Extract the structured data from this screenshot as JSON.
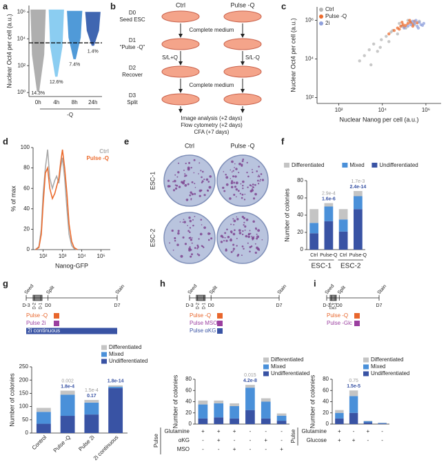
{
  "panel_labels": [
    "a",
    "b",
    "c",
    "d",
    "e",
    "f",
    "g",
    "h",
    "i"
  ],
  "diagram": {
    "columns": [
      "Ctrl",
      "Pulse -Q"
    ],
    "steps": [
      {
        "day": "D0",
        "label": "Seed ESC"
      },
      {
        "day": "D1",
        "label": "“Pulse -Q”"
      },
      {
        "day": "D2",
        "label": "Recover"
      },
      {
        "day": "D3",
        "label": "Split"
      }
    ],
    "transitions": [
      {
        "center": "Complete medium"
      },
      {
        "left": "S/L+Q",
        "right": "S/L-Q"
      },
      {
        "center": "Complete medium"
      }
    ],
    "readouts": [
      "Image analysis (+2 days)",
      "Flow cytometry (+2 days)",
      "CFA (+7 days)"
    ]
  },
  "plates": {
    "columns": [
      "Ctrl",
      "Pulse -Q"
    ],
    "rows": [
      "ESC-1",
      "ESC-2"
    ]
  },
  "chart_data": [
    {
      "type": "strip",
      "y_label": "Nuclear Oct4 per cell (a.u.)",
      "x_label": "-Q",
      "categories": [
        "0h",
        "4h",
        "8h",
        "24h"
      ],
      "low": [
        1.2,
        15,
        300,
        3000
      ],
      "high": [
        1500000,
        1500000,
        1200000,
        1000000
      ],
      "colors": [
        "#a6a6a6",
        "#7ec8ef",
        "#3d8fd4",
        "#2b55a8"
      ],
      "threshold": 5000,
      "annotations": [
        "14.3%",
        "12.6%",
        "7.4%",
        "1.4%"
      ],
      "log_y": true,
      "ylim": [
        0.5,
        3000000
      ],
      "yticks": [
        {
          "value": 1,
          "label": "10⁰"
        },
        {
          "value": 100,
          "label": "10²"
        },
        {
          "value": 10000,
          "label": "10⁴"
        },
        {
          "value": 1000000,
          "label": "10⁶"
        }
      ]
    },
    {
      "type": "scatter",
      "x_label": "Nuclear Nanog per cell (a.u.)",
      "y_label": "Nuclear Oct4 per cell (a.u.)",
      "log_x": true,
      "log_y": true,
      "xlim": [
        10,
        5000000
      ],
      "ylim": [
        50,
        5000000
      ],
      "legend": "upper left",
      "xticks": [
        {
          "value": 100,
          "label": "10²"
        },
        {
          "value": 10000,
          "label": "10⁴"
        },
        {
          "value": 1000000,
          "label": "10⁶"
        }
      ],
      "yticks": [
        {
          "value": 100,
          "label": "10²"
        },
        {
          "value": 10000,
          "label": "10⁴"
        },
        {
          "value": 1000000,
          "label": "10⁶"
        }
      ],
      "series": [
        {
          "name": "Ctrl",
          "color": "#b5b5b5",
          "x": [
            900,
            1500,
            2500,
            4000,
            6000,
            9000,
            15000,
            20000,
            30000,
            50000,
            80000,
            120000,
            200000,
            300000,
            500000,
            3000,
            8000,
            25000,
            60000,
            150000
          ],
          "y": [
            8000,
            15000,
            30000,
            60000,
            25000,
            100000,
            150000,
            80000,
            300000,
            200000,
            500000,
            400000,
            800000,
            600000,
            900000,
            5000,
            40000,
            250000,
            700000,
            1000000
          ]
        },
        {
          "name": "Pulse -Q",
          "color": "#ec6b2d",
          "x": [
            20000,
            35000,
            50000,
            70000,
            90000,
            120000,
            150000,
            200000,
            250000,
            300000,
            400000,
            60000,
            100000,
            180000,
            80000,
            250000
          ],
          "y": [
            200000,
            300000,
            400000,
            500000,
            600000,
            550000,
            700000,
            800000,
            650000,
            900000,
            750000,
            350000,
            450000,
            1000000,
            800000,
            500000
          ]
        },
        {
          "name": "2i",
          "color": "#8fa0dc",
          "x": [
            100000,
            150000,
            200000,
            300000,
            400000,
            500000,
            600000,
            800000,
            250000,
            350000,
            450000,
            700000
          ],
          "y": [
            400000,
            500000,
            600000,
            700000,
            500000,
            800000,
            600000,
            700000,
            900000,
            1000000,
            400000,
            550000
          ]
        }
      ]
    },
    {
      "type": "line",
      "x_label": "Nanog-GFP",
      "y_label": "% of max",
      "log_x": true,
      "xlim": [
        30,
        300000
      ],
      "ylim": [
        0,
        100
      ],
      "xticks": [
        {
          "value": 100,
          "label": "10²"
        },
        {
          "value": 1000,
          "label": "10³"
        },
        {
          "value": 10000,
          "label": "10⁴"
        },
        {
          "value": 100000,
          "label": "10⁵"
        }
      ],
      "yticks": [
        0,
        20,
        40,
        60,
        80,
        100
      ],
      "legend": "upper right",
      "x": [
        40,
        60,
        80,
        100,
        130,
        170,
        220,
        300,
        400,
        500,
        650,
        800,
        1000,
        1300,
        1700,
        2200,
        3000,
        4000,
        6000
      ],
      "series": [
        {
          "name": "Ctrl",
          "color": "#a9a9a9",
          "values": [
            0,
            3,
            20,
            55,
            80,
            98,
            70,
            60,
            68,
            72,
            65,
            80,
            90,
            70,
            40,
            15,
            4,
            1,
            0
          ]
        },
        {
          "name": "Pulse -Q",
          "color": "#ec6b2d",
          "values": [
            0,
            2,
            15,
            45,
            75,
            80,
            60,
            50,
            55,
            62,
            70,
            85,
            98,
            80,
            55,
            25,
            8,
            2,
            0
          ]
        }
      ]
    },
    {
      "type": "stacked_bar",
      "y_label": "Number of colonies",
      "legend": "top",
      "categories": [
        "Ctrl",
        "Pulse-Q",
        "Ctrl",
        "Pulse-Q"
      ],
      "group_labels": [
        "ESC-1",
        "ESC-2"
      ],
      "ylim": [
        0,
        80
      ],
      "yticks": [
        0,
        20,
        40,
        60,
        80
      ],
      "series": [
        {
          "name": "Undifferentiated",
          "color": "#3953a4",
          "values": [
            19,
            33,
            21,
            47
          ]
        },
        {
          "name": "Mixed",
          "color": "#4a90d9",
          "values": [
            12,
            17,
            14,
            15
          ]
        },
        {
          "name": "Differentiated",
          "color": "#c4c4c4",
          "values": [
            16,
            4,
            12,
            6
          ]
        }
      ],
      "p_values_top": [
        null,
        "2.9e-4",
        null,
        "1.7e-3"
      ],
      "p_values": [
        null,
        "1.6e-6",
        null,
        "2.4e-14"
      ],
      "p_value_colors": [
        "#9a9a9a",
        "#3953a4"
      ]
    },
    {
      "type": "stacked_bar",
      "y_label": "Number of colonies",
      "legend": "upper right",
      "categories": [
        "Control",
        "Pulse -Q",
        "Pulse 2i",
        "2i continuous"
      ],
      "x_label_rotation": -45,
      "ylim": [
        0,
        250
      ],
      "yticks": [
        0,
        50,
        100,
        150,
        200,
        250
      ],
      "series": [
        {
          "name": "Undifferentiated",
          "color": "#3953a4",
          "values": [
            35,
            65,
            70,
            170
          ]
        },
        {
          "name": "Mixed",
          "color": "#4a90d9",
          "values": [
            45,
            80,
            45,
            5
          ]
        },
        {
          "name": "Differentiated",
          "color": "#c4c4c4",
          "values": [
            15,
            15,
            10,
            5
          ]
        }
      ],
      "p_values_top": [
        null,
        "0.002",
        "1.5e-4",
        null
      ],
      "p_values": [
        null,
        "1.8e-4",
        "0.17",
        "1.8e-14"
      ],
      "p_value_colors": [
        "#9a9a9a",
        "#3953a4"
      ],
      "timeline": {
        "events": [
          "Seed",
          "Split",
          "Stain"
        ],
        "days": [
          "D-3",
          "D-2",
          "D-1",
          "D0",
          "D7"
        ]
      },
      "treatments": [
        {
          "name": "Pulse -Q",
          "color": "#e8662c",
          "duration": "pulse"
        },
        {
          "name": "Pulse 2i",
          "color": "#9b3fa0",
          "duration": "pulse"
        },
        {
          "name": "2i continuous",
          "color": "#3953a4",
          "duration": "continuous"
        }
      ]
    },
    {
      "type": "stacked_bar",
      "y_label": "Number of colonies",
      "legend": "upper right",
      "categories": [
        null,
        null,
        null,
        null,
        null,
        null
      ],
      "ylim": [
        0,
        80
      ],
      "yticks": [
        0,
        20,
        40,
        60,
        80
      ],
      "series": [
        {
          "name": "Undifferentiated",
          "color": "#3953a4",
          "values": [
            10,
            12,
            10,
            25,
            10,
            6
          ]
        },
        {
          "name": "Mixed",
          "color": "#4a90d9",
          "values": [
            25,
            25,
            22,
            40,
            30,
            9
          ]
        },
        {
          "name": "Differentiated",
          "color": "#c4c4c4",
          "values": [
            7,
            5,
            5,
            5,
            6,
            4
          ]
        }
      ],
      "p_values_top": [
        null,
        null,
        null,
        "0.015",
        null,
        null
      ],
      "p_values": [
        null,
        null,
        null,
        "4.2e-8",
        null,
        null
      ],
      "p_value_colors": [
        "#9a9a9a",
        "#3953a4"
      ],
      "conditions_label": "Pulse",
      "conditions": [
        {
          "name": "Glutamine",
          "marks": [
            "+",
            "+",
            "+",
            "-",
            "-",
            "-"
          ]
        },
        {
          "name": "αKG",
          "marks": [
            "-",
            "+",
            "-",
            "-",
            "+",
            "-"
          ]
        },
        {
          "name": "MSO",
          "marks": [
            "-",
            "-",
            "+",
            "-",
            "-",
            "+"
          ]
        }
      ],
      "timeline": {
        "events": [
          "Seed",
          "Split",
          "Stain"
        ],
        "days": [
          "D-3",
          "D-2",
          "D-1",
          "D0",
          "D7"
        ]
      },
      "treatments": [
        {
          "name": "Pulse -Q",
          "color": "#e8662c",
          "duration": "pulse"
        },
        {
          "name": "Pulse MSO",
          "color": "#9b3fa0",
          "duration": "pulse"
        },
        {
          "name": "Pulse αKG",
          "color": "#3953a4",
          "duration": "pulse"
        }
      ]
    },
    {
      "type": "stacked_bar",
      "y_label": "Number of colonies",
      "legend": "upper right",
      "categories": [
        null,
        null,
        null,
        null
      ],
      "ylim": [
        0,
        80
      ],
      "yticks": [
        0,
        20,
        40,
        60,
        80
      ],
      "series": [
        {
          "name": "Undifferentiated",
          "color": "#3953a4",
          "values": [
            10,
            20,
            3,
            1
          ]
        },
        {
          "name": "Mixed",
          "color": "#4a90d9",
          "values": [
            10,
            30,
            2,
            1
          ]
        },
        {
          "name": "Differentiated",
          "color": "#c4c4c4",
          "values": [
            5,
            10,
            1,
            0.5
          ]
        }
      ],
      "p_values_top": [
        null,
        "0.75",
        null,
        null
      ],
      "p_values": [
        null,
        "1.5e-5",
        null,
        null
      ],
      "p_value_colors": [
        "#9a9a9a",
        "#3953a4"
      ],
      "conditions_label": "Pulse",
      "conditions": [
        {
          "name": "Glutamine",
          "marks": [
            "+",
            "-",
            "+",
            "-"
          ]
        },
        {
          "name": "Glucose",
          "marks": [
            "+",
            "+",
            "-",
            "-"
          ]
        }
      ],
      "timeline": {
        "events": [
          "Seed",
          "Split",
          "Stain"
        ],
        "days": [
          "D-3",
          "D-2",
          "D-1",
          "D0",
          "D7"
        ]
      },
      "treatments": [
        {
          "name": "Pulse -Q",
          "color": "#e8662c",
          "duration": "pulse"
        },
        {
          "name": "Pulse -Glc",
          "color": "#9b3fa0",
          "duration": "pulse"
        }
      ]
    }
  ]
}
